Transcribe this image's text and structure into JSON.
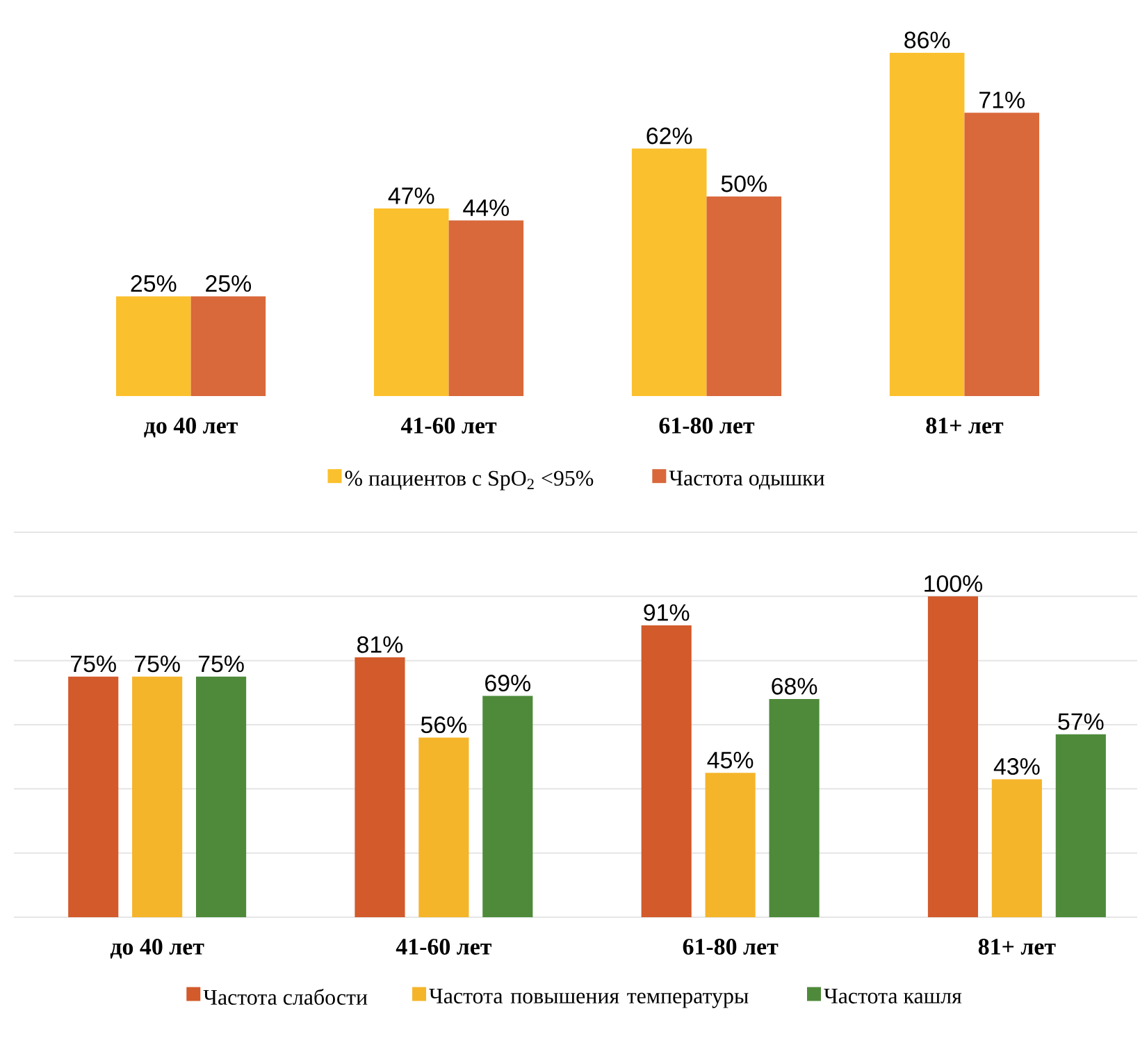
{
  "chart_data": [
    {
      "type": "bar",
      "categories": [
        "до 40 лет",
        "41-60 лет",
        "61-80 лет",
        "81+ лет"
      ],
      "tick_labels": "x",
      "legend": "bottom",
      "series": [
        {
          "name": "% пациентов с SpO$_{2}$ <95%",
          "color": "#fbc02d",
          "values": [
            25,
            47,
            62,
            86
          ],
          "value_labels": [
            "25%",
            "47%",
            "62%",
            "86%"
          ]
        },
        {
          "name": "Частота одышки",
          "color": "#d9683a",
          "values": [
            25,
            44,
            50,
            71
          ],
          "value_labels": [
            "25%",
            "44%",
            "50%",
            "71%"
          ]
        }
      ]
    },
    {
      "type": "bar",
      "categories": [
        "до 40 лет",
        "41-60 лет",
        "61-80 лет",
        "81+ лет"
      ],
      "ylim": [
        0,
        120
      ],
      "yticks": [
        {
          "value": 0,
          "label": null
        },
        {
          "value": 20,
          "label": null
        },
        {
          "value": 40,
          "label": null
        },
        {
          "value": 60,
          "label": null
        },
        {
          "value": 80,
          "label": null
        },
        {
          "value": 100,
          "label": null
        },
        {
          "value": 120,
          "label": null
        }
      ],
      "tick_labels": "x",
      "grid": "y",
      "legend": "bottom",
      "series": [
        {
          "name": "Частота слабости",
          "color": "#d25a2b",
          "values": [
            75,
            81,
            91,
            100
          ],
          "value_labels": [
            "75%",
            "81%",
            "91%",
            "100%"
          ]
        },
        {
          "name": "Частота повышения температуры",
          "color": "#f5b52a",
          "values": [
            75,
            56,
            45,
            43
          ],
          "value_labels": [
            "75%",
            "56%",
            "45%",
            "43%"
          ]
        },
        {
          "name": "Частота кашля",
          "color": "#4e8a3a",
          "values": [
            75,
            69,
            68,
            57
          ],
          "value_labels": [
            "75%",
            "69%",
            "68%",
            "57%"
          ]
        }
      ]
    }
  ]
}
